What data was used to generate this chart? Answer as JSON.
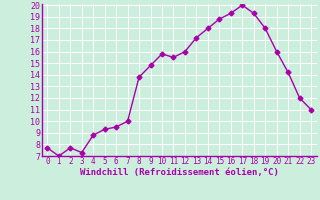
{
  "x": [
    0,
    1,
    2,
    3,
    4,
    5,
    6,
    7,
    8,
    9,
    10,
    11,
    12,
    13,
    14,
    15,
    16,
    17,
    18,
    19,
    20,
    21,
    22,
    23
  ],
  "y": [
    7.7,
    7.0,
    7.7,
    7.3,
    8.8,
    9.3,
    9.5,
    10.0,
    13.8,
    14.8,
    15.8,
    15.5,
    16.0,
    17.2,
    18.0,
    18.8,
    19.3,
    20.0,
    19.3,
    18.0,
    16.0,
    14.2,
    12.0,
    11.0
  ],
  "line_color": "#aa00aa",
  "marker": "D",
  "marker_size": 2.5,
  "bg_color": "#cceedd",
  "grid_color": "#ffffff",
  "xlabel": "Windchill (Refroidissement éolien,°C)",
  "xlabel_fontsize": 6.5,
  "xlabel_color": "#aa00aa",
  "tick_color": "#aa00aa",
  "ylim": [
    7,
    20
  ],
  "xlim": [
    -0.5,
    23.5
  ],
  "yticks": [
    7,
    8,
    9,
    10,
    11,
    12,
    13,
    14,
    15,
    16,
    17,
    18,
    19,
    20
  ],
  "xticks": [
    0,
    1,
    2,
    3,
    4,
    5,
    6,
    7,
    8,
    9,
    10,
    11,
    12,
    13,
    14,
    15,
    16,
    17,
    18,
    19,
    20,
    21,
    22,
    23
  ],
  "tick_fontsize": 5.5,
  "linewidth": 1.0
}
